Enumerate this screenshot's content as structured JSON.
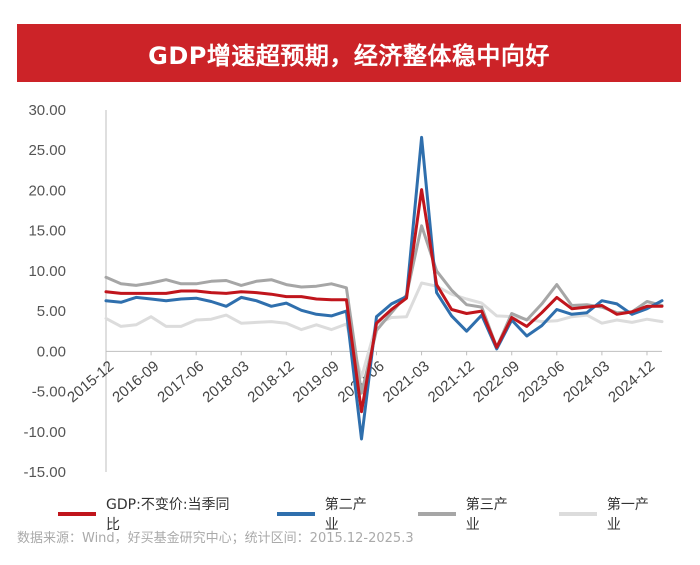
{
  "title": "GDP增速超预期，经济整体稳中向好",
  "source": "数据来源：Wind，好买基金研究中心；统计区间：2015.12-2025.3",
  "colors": {
    "banner": "#cc2328",
    "gdp": "#c0151c",
    "secondary": "#2f6fad",
    "tertiary": "#a6a6a6",
    "primary": "#dcdcdc"
  },
  "chart_data": {
    "type": "line",
    "title": "GDP增速超预期，经济整体稳中向好",
    "xlabel": "",
    "ylabel": "",
    "ylim": [
      -15,
      30
    ],
    "yticks": [
      "30.00",
      "25.00",
      "20.00",
      "15.00",
      "10.00",
      "5.00",
      "0.00",
      "-5.00",
      "-10.00",
      "-15.00"
    ],
    "x": [
      "2015-12",
      "2016-03",
      "2016-06",
      "2016-09",
      "2016-12",
      "2017-03",
      "2017-06",
      "2017-09",
      "2017-12",
      "2018-03",
      "2018-06",
      "2018-09",
      "2018-12",
      "2019-03",
      "2019-06",
      "2019-09",
      "2019-12",
      "2020-03",
      "2020-06",
      "2020-09",
      "2020-12",
      "2021-03",
      "2021-06",
      "2021-09",
      "2021-12",
      "2022-03",
      "2022-06",
      "2022-09",
      "2022-12",
      "2023-03",
      "2023-06",
      "2023-09",
      "2023-12",
      "2024-03",
      "2024-06",
      "2024-09",
      "2024-12",
      "2025-03"
    ],
    "xtick_labels": [
      "2015-12",
      "2016-09",
      "2017-06",
      "2018-03",
      "2018-12",
      "2019-09",
      "2020-06",
      "2021-03",
      "2021-12",
      "2022-09",
      "2023-06",
      "2024-03",
      "2024-12"
    ],
    "legend_position": "bottom",
    "series": [
      {
        "name": "GDP:不变价:当季同比",
        "values": [
          7.4,
          7.2,
          7.2,
          7.2,
          7.2,
          7.5,
          7.5,
          7.3,
          7.2,
          7.4,
          7.3,
          7.1,
          6.8,
          6.8,
          6.5,
          6.4,
          6.4,
          -7.5,
          3.5,
          5.2,
          6.6,
          20.1,
          8.3,
          5.2,
          4.7,
          5.0,
          0.5,
          4.2,
          3.1,
          4.8,
          6.7,
          5.3,
          5.5,
          5.7,
          4.6,
          4.9,
          5.6,
          5.6
        ]
      },
      {
        "name": "第二产业",
        "values": [
          6.3,
          6.1,
          6.7,
          6.5,
          6.3,
          6.5,
          6.6,
          6.2,
          5.6,
          6.7,
          6.3,
          5.6,
          6.0,
          5.1,
          4.6,
          4.4,
          5.0,
          -10.9,
          4.3,
          5.9,
          6.8,
          26.6,
          7.3,
          4.4,
          2.5,
          4.5,
          0.3,
          3.9,
          1.9,
          3.2,
          5.2,
          4.6,
          4.8,
          6.3,
          5.9,
          4.6,
          5.3,
          6.3
        ]
      },
      {
        "name": "第三产业",
        "values": [
          9.2,
          8.4,
          8.2,
          8.5,
          8.9,
          8.4,
          8.4,
          8.7,
          8.8,
          8.2,
          8.7,
          8.9,
          8.3,
          8.0,
          8.1,
          8.4,
          7.9,
          -5.2,
          2.6,
          4.8,
          7.0,
          15.6,
          10.0,
          7.6,
          5.8,
          5.5,
          0.5,
          4.7,
          3.9,
          5.9,
          8.3,
          5.7,
          5.8,
          5.5,
          4.8,
          4.9,
          6.2,
          5.7
        ]
      },
      {
        "name": "第一产业",
        "values": [
          4.1,
          3.1,
          3.3,
          4.3,
          3.1,
          3.1,
          3.9,
          4.0,
          4.5,
          3.5,
          3.6,
          3.7,
          3.5,
          2.7,
          3.3,
          2.7,
          3.4,
          -3.2,
          3.4,
          4.2,
          4.3,
          8.5,
          8.1,
          7.1,
          6.5,
          6.0,
          4.4,
          4.3,
          4.0,
          3.7,
          3.8,
          4.3,
          4.5,
          3.5,
          3.9,
          3.6,
          4.0,
          3.7
        ]
      }
    ]
  }
}
